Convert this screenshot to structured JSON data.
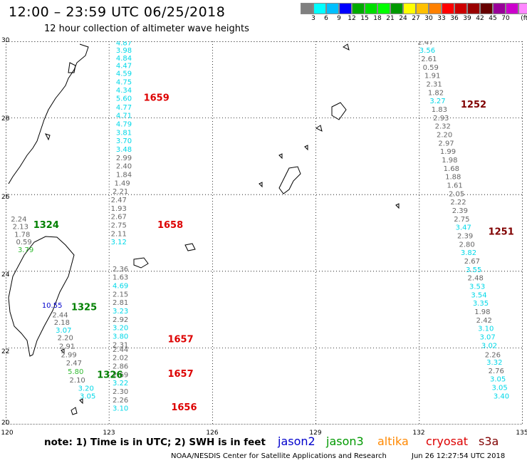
{
  "header": {
    "title": "12:00 – 23:59 UTC 06/25/2018",
    "subtitle": "12 hour collection of altimeter wave heights"
  },
  "colorbar": {
    "colors": [
      "#808080",
      "#00ffff",
      "#00bfff",
      "#0000ff",
      "#00aa00",
      "#00dd00",
      "#00ff00",
      "#009900",
      "#ffff00",
      "#ffc000",
      "#ff8000",
      "#ff0000",
      "#cc0000",
      "#990000",
      "#660000",
      "#990099",
      "#cc00cc",
      "#ff88ff",
      "#000000"
    ],
    "labels": [
      "3",
      "6",
      "9",
      "12",
      "15",
      "18",
      "21",
      "24",
      "27",
      "30",
      "33",
      "36",
      "39",
      "42",
      "45",
      "70",
      "(ft)"
    ]
  },
  "axes": {
    "lat_labels": [
      "30",
      "28",
      "26",
      "24",
      "22",
      "20"
    ],
    "lon_labels": [
      "120",
      "123",
      "126",
      "129",
      "132",
      "135"
    ]
  },
  "map_data": {
    "lon_range": [
      120,
      135
    ],
    "lat_range": [
      20,
      30
    ],
    "observations": [
      {
        "lat": 29.9,
        "lon": 123.2,
        "v": "4.87",
        "c": "cyan"
      },
      {
        "lat": 29.7,
        "lon": 123.2,
        "v": "3.98",
        "c": "cyan"
      },
      {
        "lat": 29.5,
        "lon": 123.2,
        "v": "4.84",
        "c": "cyan"
      },
      {
        "lat": 29.3,
        "lon": 123.2,
        "v": "4.47",
        "c": "cyan"
      },
      {
        "lat": 29.1,
        "lon": 123.2,
        "v": "4.59",
        "c": "cyan"
      },
      {
        "lat": 28.88,
        "lon": 123.2,
        "v": "4.75",
        "c": "cyan"
      },
      {
        "lat": 28.66,
        "lon": 123.2,
        "v": "4.34",
        "c": "cyan"
      },
      {
        "lat": 28.45,
        "lon": 123.2,
        "v": "5.60",
        "c": "cyan"
      },
      {
        "lat": 28.22,
        "lon": 123.2,
        "v": "4.77",
        "c": "cyan"
      },
      {
        "lat": 28.0,
        "lon": 123.2,
        "v": "4.71",
        "c": "cyan"
      },
      {
        "lat": 27.78,
        "lon": 123.2,
        "v": "4.79",
        "c": "cyan"
      },
      {
        "lat": 27.56,
        "lon": 123.2,
        "v": "3.81",
        "c": "cyan"
      },
      {
        "lat": 27.34,
        "lon": 123.2,
        "v": "3.70",
        "c": "cyan"
      },
      {
        "lat": 27.12,
        "lon": 123.2,
        "v": "3.48",
        "c": "cyan"
      },
      {
        "lat": 26.9,
        "lon": 123.2,
        "v": "2.99",
        "c": "gray"
      },
      {
        "lat": 26.68,
        "lon": 123.2,
        "v": "2.40",
        "c": "gray"
      },
      {
        "lat": 26.46,
        "lon": 123.2,
        "v": "1.84",
        "c": "gray"
      },
      {
        "lat": 26.24,
        "lon": 123.15,
        "v": "1.49",
        "c": "gray"
      },
      {
        "lat": 26.02,
        "lon": 123.1,
        "v": "2.21",
        "c": "gray"
      },
      {
        "lat": 25.8,
        "lon": 123.05,
        "v": "2.47",
        "c": "gray"
      },
      {
        "lat": 25.58,
        "lon": 123.05,
        "v": "1.93",
        "c": "gray"
      },
      {
        "lat": 25.36,
        "lon": 123.05,
        "v": "2.67",
        "c": "gray"
      },
      {
        "lat": 25.14,
        "lon": 123.05,
        "v": "2.75",
        "c": "gray"
      },
      {
        "lat": 24.92,
        "lon": 123.05,
        "v": "2.11",
        "c": "gray"
      },
      {
        "lat": 24.7,
        "lon": 123.05,
        "v": "3.12",
        "c": "cyan"
      },
      {
        "lat": 24.0,
        "lon": 123.1,
        "v": "2.36",
        "c": "gray"
      },
      {
        "lat": 23.78,
        "lon": 123.1,
        "v": "1.63",
        "c": "gray"
      },
      {
        "lat": 23.56,
        "lon": 123.1,
        "v": "4.69",
        "c": "cyan"
      },
      {
        "lat": 23.34,
        "lon": 123.1,
        "v": "2.15",
        "c": "gray"
      },
      {
        "lat": 23.12,
        "lon": 123.1,
        "v": "2.81",
        "c": "gray"
      },
      {
        "lat": 22.9,
        "lon": 123.1,
        "v": "3.23",
        "c": "cyan"
      },
      {
        "lat": 22.68,
        "lon": 123.1,
        "v": "2.92",
        "c": "gray"
      },
      {
        "lat": 22.46,
        "lon": 123.1,
        "v": "3.20",
        "c": "cyan"
      },
      {
        "lat": 22.24,
        "lon": 123.1,
        "v": "3.80",
        "c": "cyan"
      },
      {
        "lat": 22.02,
        "lon": 123.1,
        "v": "2.31",
        "c": "gray"
      },
      {
        "lat": 21.9,
        "lon": 123.1,
        "v": "2.44",
        "c": "gray"
      },
      {
        "lat": 21.68,
        "lon": 123.1,
        "v": "2.02",
        "c": "gray"
      },
      {
        "lat": 21.46,
        "lon": 123.1,
        "v": "2.86",
        "c": "gray"
      },
      {
        "lat": 21.24,
        "lon": 123.1,
        "v": "2.69",
        "c": "gray"
      },
      {
        "lat": 21.02,
        "lon": 123.1,
        "v": "3.22",
        "c": "cyan"
      },
      {
        "lat": 20.8,
        "lon": 123.1,
        "v": "2.30",
        "c": "gray"
      },
      {
        "lat": 20.58,
        "lon": 123.1,
        "v": "2.26",
        "c": "gray"
      },
      {
        "lat": 20.36,
        "lon": 123.1,
        "v": "3.10",
        "c": "cyan"
      },
      {
        "lat": 29.92,
        "lon": 131.95,
        "v": "2.47",
        "c": "gray"
      },
      {
        "lat": 29.7,
        "lon": 132.0,
        "v": "3.56",
        "c": "cyan"
      },
      {
        "lat": 29.48,
        "lon": 132.05,
        "v": "2.61",
        "c": "gray"
      },
      {
        "lat": 29.26,
        "lon": 132.1,
        "v": "0.59",
        "c": "gray"
      },
      {
        "lat": 29.04,
        "lon": 132.15,
        "v": "1.91",
        "c": "gray"
      },
      {
        "lat": 28.82,
        "lon": 132.2,
        "v": "2.31",
        "c": "gray"
      },
      {
        "lat": 28.6,
        "lon": 132.25,
        "v": "1.82",
        "c": "gray"
      },
      {
        "lat": 28.38,
        "lon": 132.3,
        "v": "3.27",
        "c": "cyan"
      },
      {
        "lat": 28.16,
        "lon": 132.35,
        "v": "1.83",
        "c": "gray"
      },
      {
        "lat": 27.94,
        "lon": 132.4,
        "v": "2.93",
        "c": "gray"
      },
      {
        "lat": 27.72,
        "lon": 132.45,
        "v": "2.32",
        "c": "gray"
      },
      {
        "lat": 27.5,
        "lon": 132.5,
        "v": "2.20",
        "c": "gray"
      },
      {
        "lat": 27.28,
        "lon": 132.55,
        "v": "2.97",
        "c": "gray"
      },
      {
        "lat": 27.06,
        "lon": 132.6,
        "v": "1.99",
        "c": "gray"
      },
      {
        "lat": 26.84,
        "lon": 132.65,
        "v": "1.98",
        "c": "gray"
      },
      {
        "lat": 26.62,
        "lon": 132.7,
        "v": "1.68",
        "c": "gray"
      },
      {
        "lat": 26.4,
        "lon": 132.75,
        "v": "1.88",
        "c": "gray"
      },
      {
        "lat": 26.18,
        "lon": 132.8,
        "v": "1.61",
        "c": "gray"
      },
      {
        "lat": 25.96,
        "lon": 132.85,
        "v": "2.05",
        "c": "gray"
      },
      {
        "lat": 25.74,
        "lon": 132.9,
        "v": "2.22",
        "c": "gray"
      },
      {
        "lat": 25.52,
        "lon": 132.95,
        "v": "2.39",
        "c": "gray"
      },
      {
        "lat": 25.3,
        "lon": 133.0,
        "v": "2.75",
        "c": "gray"
      },
      {
        "lat": 25.08,
        "lon": 133.05,
        "v": "3.47",
        "c": "cyan"
      },
      {
        "lat": 24.86,
        "lon": 133.1,
        "v": "2.39",
        "c": "gray"
      },
      {
        "lat": 24.64,
        "lon": 133.15,
        "v": "2.80",
        "c": "gray"
      },
      {
        "lat": 24.42,
        "lon": 133.2,
        "v": "3.82",
        "c": "cyan"
      },
      {
        "lat": 24.2,
        "lon": 133.3,
        "v": "2.67",
        "c": "gray"
      },
      {
        "lat": 23.98,
        "lon": 133.35,
        "v": "3.55",
        "c": "cyan"
      },
      {
        "lat": 23.76,
        "lon": 133.4,
        "v": "2.48",
        "c": "gray"
      },
      {
        "lat": 23.54,
        "lon": 133.45,
        "v": "3.53",
        "c": "cyan"
      },
      {
        "lat": 23.32,
        "lon": 133.5,
        "v": "3.54",
        "c": "cyan"
      },
      {
        "lat": 23.1,
        "lon": 133.55,
        "v": "3.35",
        "c": "cyan"
      },
      {
        "lat": 22.88,
        "lon": 133.6,
        "v": "1.98",
        "c": "gray"
      },
      {
        "lat": 22.66,
        "lon": 133.65,
        "v": "2.42",
        "c": "gray"
      },
      {
        "lat": 22.44,
        "lon": 133.7,
        "v": "3.10",
        "c": "cyan"
      },
      {
        "lat": 22.22,
        "lon": 133.75,
        "v": "3.07",
        "c": "cyan"
      },
      {
        "lat": 22.0,
        "lon": 133.8,
        "v": "3.02",
        "c": "cyan"
      },
      {
        "lat": 21.76,
        "lon": 133.9,
        "v": "2.26",
        "c": "gray"
      },
      {
        "lat": 21.56,
        "lon": 133.95,
        "v": "3.32",
        "c": "cyan"
      },
      {
        "lat": 21.34,
        "lon": 134.0,
        "v": "2.76",
        "c": "gray"
      },
      {
        "lat": 21.12,
        "lon": 134.05,
        "v": "3.05",
        "c": "cyan"
      },
      {
        "lat": 20.9,
        "lon": 134.1,
        "v": "3.05",
        "c": "cyan"
      },
      {
        "lat": 20.68,
        "lon": 134.15,
        "v": "3.40",
        "c": "cyan"
      },
      {
        "lat": 25.3,
        "lon": 120.15,
        "v": "2.24",
        "c": "gray"
      },
      {
        "lat": 25.1,
        "lon": 120.2,
        "v": "2.13",
        "c": "gray"
      },
      {
        "lat": 24.9,
        "lon": 120.25,
        "v": "1.78",
        "c": "gray"
      },
      {
        "lat": 24.7,
        "lon": 120.3,
        "v": "0.59",
        "c": "gray"
      },
      {
        "lat": 24.5,
        "lon": 120.35,
        "v": "3.79",
        "c": "green"
      },
      {
        "lat": 23.05,
        "lon": 121.05,
        "v": "10.55",
        "c": "blue"
      },
      {
        "lat": 22.8,
        "lon": 121.35,
        "v": "2.44",
        "c": "gray"
      },
      {
        "lat": 22.6,
        "lon": 121.4,
        "v": "2.18",
        "c": "gray"
      },
      {
        "lat": 22.4,
        "lon": 121.45,
        "v": "3.07",
        "c": "cyan"
      },
      {
        "lat": 22.2,
        "lon": 121.5,
        "v": "2.20",
        "c": "gray"
      },
      {
        "lat": 21.98,
        "lon": 121.55,
        "v": "2.91",
        "c": "gray"
      },
      {
        "lat": 21.76,
        "lon": 121.6,
        "v": "2.99",
        "c": "gray"
      },
      {
        "lat": 21.54,
        "lon": 121.75,
        "v": "2.47",
        "c": "gray"
      },
      {
        "lat": 21.32,
        "lon": 121.8,
        "v": "5.80",
        "c": "green"
      },
      {
        "lat": 21.1,
        "lon": 121.85,
        "v": "2.10",
        "c": "gray"
      },
      {
        "lat": 20.88,
        "lon": 122.1,
        "v": "3.20",
        "c": "cyan"
      },
      {
        "lat": 20.68,
        "lon": 122.15,
        "v": "3.05",
        "c": "cyan"
      }
    ],
    "pass_labels": [
      {
        "lat": 28.45,
        "lon": 124.0,
        "t": "1659",
        "c": "#dd0000"
      },
      {
        "lat": 28.27,
        "lon": 133.2,
        "t": "1252",
        "c": "#800000"
      },
      {
        "lat": 25.13,
        "lon": 124.4,
        "t": "1658",
        "c": "#dd0000"
      },
      {
        "lat": 24.95,
        "lon": 134.0,
        "t": "1251",
        "c": "#800000"
      },
      {
        "lat": 25.13,
        "lon": 120.8,
        "t": "1324",
        "c": "#008000"
      },
      {
        "lat": 22.98,
        "lon": 121.9,
        "t": "1325",
        "c": "#008000"
      },
      {
        "lat": 22.15,
        "lon": 124.7,
        "t": "1657",
        "c": "#dd0000"
      },
      {
        "lat": 21.25,
        "lon": 124.7,
        "t": "1657",
        "c": "#dd0000"
      },
      {
        "lat": 21.22,
        "lon": 122.65,
        "t": "1326",
        "c": "#008000"
      },
      {
        "lat": 20.37,
        "lon": 124.8,
        "t": "1656",
        "c": "#dd0000"
      }
    ]
  },
  "footer": {
    "note": "note:  1) Time is in UTC;  2) SWH is in feet",
    "satellites": [
      {
        "name": "jason2",
        "color": "#0000cc"
      },
      {
        "name": "jason3",
        "color": "#009900"
      },
      {
        "name": "altika",
        "color": "#ff8800"
      },
      {
        "name": "cryosat",
        "color": "#dd0000"
      },
      {
        "name": "s3a",
        "color": "#800000"
      }
    ],
    "credit": "NOAA/NESDIS Center for Satellite Applications and Research",
    "timestamp": "Jun 26 12:27:54 UTC 2018"
  }
}
